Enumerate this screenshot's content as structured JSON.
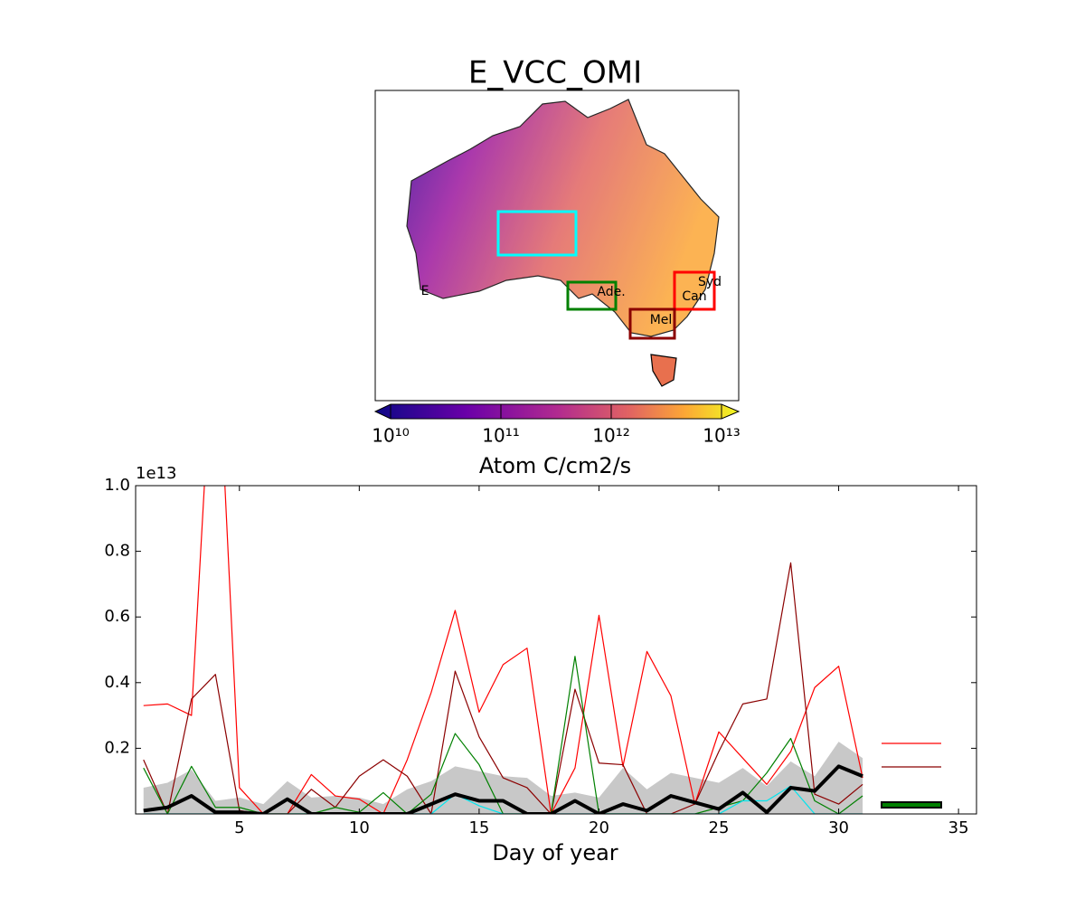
{
  "chart_data": [
    {
      "type": "map",
      "title": "E_VCC_OMI",
      "colorbar_label": "Atom C/cm2/s",
      "colormap": "plasma",
      "log_scale": true,
      "clim": [
        10000000000,
        10000000000000
      ],
      "cticks": [
        {
          "value": 10000000000,
          "label": "10¹⁰"
        },
        {
          "value": 100000000000,
          "label": "10¹¹"
        },
        {
          "value": 1000000000000,
          "label": "10¹²"
        },
        {
          "value": 10000000000000,
          "label": "10¹³"
        }
      ],
      "regions": [
        {
          "label": "Syd",
          "color": "#ff0000"
        },
        {
          "label": "Can",
          "color": "#ff0000"
        },
        {
          "label": "Ade.",
          "color": "#008000"
        },
        {
          "label": "Mel",
          "color": "#8b0000"
        },
        {
          "label": "E",
          "color": "#00ffff"
        }
      ]
    },
    {
      "type": "line",
      "xlabel": "Day of year",
      "offset_label": "1e13",
      "legend": "lower right",
      "x": [
        1,
        2,
        3,
        4,
        5,
        6,
        7,
        8,
        9,
        10,
        11,
        12,
        13,
        14,
        15,
        16,
        17,
        18,
        19,
        20,
        21,
        22,
        23,
        24,
        25,
        26,
        27,
        28,
        29,
        30,
        31
      ],
      "xlim": [
        0.67,
        35.75
      ],
      "xticks": [
        5,
        10,
        15,
        20,
        25,
        30,
        35
      ],
      "ylim": [
        0,
        1.0
      ],
      "yticks": [
        0.2,
        0.4,
        0.6,
        0.8,
        {
          "value": 1.0,
          "label": "1.0"
        }
      ],
      "band": {
        "color": "#c8c8c8",
        "upper": [
          0.08,
          0.095,
          0.135,
          0.04,
          0.05,
          0.03,
          0.1,
          0.05,
          0.055,
          0.05,
          0.03,
          0.075,
          0.1,
          0.145,
          0.13,
          0.115,
          0.11,
          0.055,
          0.065,
          0.05,
          0.14,
          0.075,
          0.125,
          0.11,
          0.095,
          0.14,
          0.085,
          0.16,
          0.115,
          0.22,
          0.17
        ],
        "lower": [
          0,
          0,
          0,
          0,
          0,
          0,
          0,
          0,
          0,
          0,
          0,
          0,
          0,
          0,
          0,
          0,
          0,
          0,
          0,
          0,
          0,
          0,
          0,
          0,
          0,
          0,
          0,
          0,
          0,
          0,
          0
        ]
      },
      "series": [
        {
          "color": "#ff0000",
          "linewidth": 1.2,
          "values": [
            0.33,
            0.335,
            0.3,
            1.6,
            0.08,
            0,
            0,
            0.12,
            0.055,
            0.045,
            0,
            0.165,
            0.37,
            0.62,
            0.31,
            0.455,
            0.505,
            0,
            0.14,
            0.605,
            0.145,
            0.495,
            0.36,
            0.03,
            0.25,
            0.17,
            0.09,
            0.19,
            0.385,
            0.45,
            0.11
          ]
        },
        {
          "color": "#8b0000",
          "linewidth": 1.2,
          "values": [
            0.165,
            0,
            0.35,
            0.425,
            0.01,
            0,
            0,
            0.075,
            0.02,
            0.115,
            0.165,
            0.115,
            0,
            0.435,
            0.235,
            0.11,
            0.08,
            0,
            0.38,
            0.155,
            0.15,
            0,
            0,
            0.03,
            0.19,
            0.335,
            0.35,
            0.765,
            0.06,
            0.03,
            0.09
          ]
        },
        {
          "color": "#008000",
          "linewidth": 1.2,
          "values": [
            0.14,
            0,
            0.145,
            0.02,
            0.02,
            0,
            0,
            0,
            0.02,
            0.005,
            0.065,
            0,
            0.06,
            0.245,
            0.15,
            0,
            0,
            0,
            0.48,
            0,
            0,
            0,
            0,
            0,
            0.02,
            0.04,
            0.125,
            0.23,
            0.04,
            0,
            0.055
          ]
        },
        {
          "color": "#00e5ee",
          "linewidth": 1.2,
          "values": [
            0,
            0,
            0,
            0,
            0,
            0,
            0,
            0,
            0,
            0,
            0,
            0,
            0,
            0.06,
            0.025,
            0,
            0,
            0,
            0,
            0,
            0,
            0,
            0,
            0,
            0,
            0.04,
            0.04,
            0.085,
            0,
            0,
            0
          ]
        },
        {
          "color": "#000000",
          "linewidth": 4,
          "values": [
            0.01,
            0.02,
            0.055,
            0.005,
            0.005,
            0,
            0.045,
            0,
            0,
            0,
            0,
            0,
            0.03,
            0.06,
            0.04,
            0.04,
            0,
            0,
            0.04,
            0,
            0.03,
            0.01,
            0.055,
            0.035,
            0.015,
            0.065,
            0.005,
            0.08,
            0.07,
            0.145,
            0.115
          ]
        }
      ]
    }
  ]
}
